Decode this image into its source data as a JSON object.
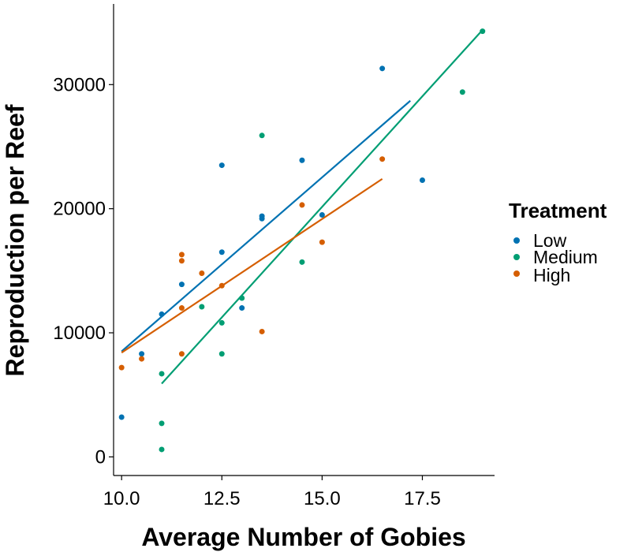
{
  "chart_data": {
    "type": "scatter",
    "title": "",
    "xlabel": "Average Number of Gobies",
    "ylabel": "Reproduction per Reef",
    "xlim": [
      9.8,
      19.3
    ],
    "ylim": [
      -1500,
      36500
    ],
    "x_ticks": [
      10.0,
      12.5,
      15.0,
      17.5
    ],
    "x_tick_labels": [
      "10.0",
      "12.5",
      "15.0",
      "17.5"
    ],
    "y_ticks": [
      0,
      10000,
      20000,
      30000
    ],
    "y_tick_labels": [
      "0",
      "10000",
      "20000",
      "30000"
    ],
    "grid": false,
    "legend_title": "Treatment",
    "legend_position": "right",
    "series": [
      {
        "name": "Low",
        "color": "#0072B2",
        "points": [
          [
            10.0,
            3200
          ],
          [
            10.5,
            8300
          ],
          [
            11.0,
            11500
          ],
          [
            11.5,
            13900
          ],
          [
            12.5,
            23500
          ],
          [
            12.5,
            16500
          ],
          [
            13.0,
            12000
          ],
          [
            13.5,
            19200
          ],
          [
            13.5,
            19400
          ],
          [
            14.5,
            23900
          ],
          [
            15.0,
            19500
          ],
          [
            16.5,
            31300
          ],
          [
            17.5,
            22300
          ]
        ],
        "fit": [
          [
            10.0,
            8500
          ],
          [
            17.2,
            28700
          ]
        ]
      },
      {
        "name": "Medium",
        "color": "#009E73",
        "points": [
          [
            11.0,
            6700
          ],
          [
            11.0,
            2700
          ],
          [
            11.0,
            600
          ],
          [
            12.0,
            12100
          ],
          [
            12.5,
            10800
          ],
          [
            12.5,
            8300
          ],
          [
            13.0,
            12800
          ],
          [
            13.5,
            25900
          ],
          [
            14.5,
            15700
          ],
          [
            18.5,
            29400
          ],
          [
            19.0,
            34300
          ]
        ],
        "fit": [
          [
            11.0,
            5900
          ],
          [
            19.0,
            34400
          ]
        ]
      },
      {
        "name": "High",
        "color": "#D55E00",
        "points": [
          [
            10.0,
            7200
          ],
          [
            10.5,
            7900
          ],
          [
            11.5,
            16300
          ],
          [
            11.5,
            15800
          ],
          [
            11.5,
            12000
          ],
          [
            11.5,
            8300
          ],
          [
            12.0,
            14800
          ],
          [
            12.5,
            13800
          ],
          [
            13.5,
            10100
          ],
          [
            14.5,
            20300
          ],
          [
            15.0,
            17300
          ],
          [
            16.5,
            24000
          ]
        ],
        "fit": [
          [
            10.0,
            8400
          ],
          [
            16.5,
            22400
          ]
        ]
      }
    ]
  }
}
